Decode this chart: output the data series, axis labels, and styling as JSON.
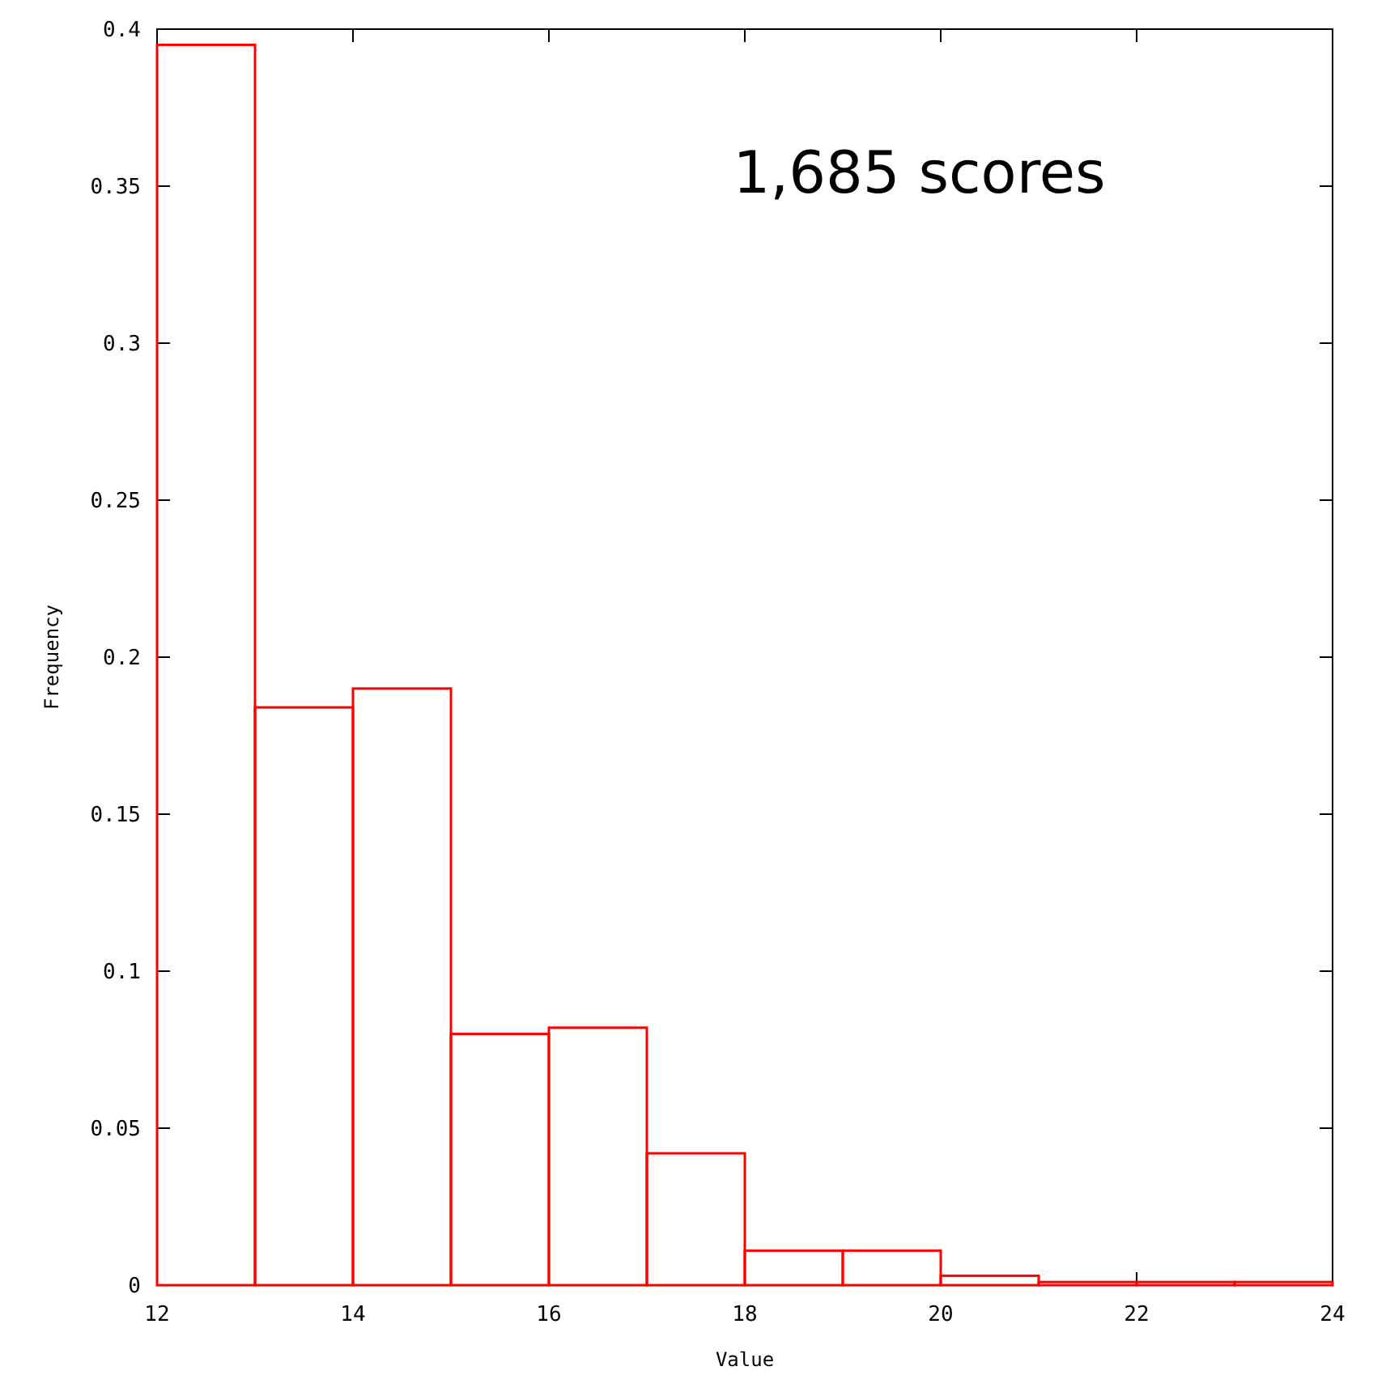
{
  "chart_data": {
    "type": "histogram",
    "xlabel": "Value",
    "ylabel": "Frequency",
    "annotations": [
      "1,685 scores"
    ],
    "bins": [
      12,
      13,
      14,
      15,
      16,
      17,
      18,
      19,
      20,
      21,
      22,
      23,
      24
    ],
    "values": [
      0.395,
      0.184,
      0.19,
      0.08,
      0.082,
      0.042,
      0.011,
      0.011,
      0.003,
      0.001,
      0.001,
      0.001
    ],
    "color": "#ff0000",
    "xlim": [
      12,
      24
    ],
    "xticks": [
      12,
      14,
      16,
      18,
      20,
      22,
      24
    ],
    "ylim": [
      0,
      0.4
    ],
    "yticks": [
      0,
      0.05,
      0.1,
      0.15,
      0.2,
      0.25,
      0.3,
      0.35,
      0.4
    ],
    "grid": false
  }
}
